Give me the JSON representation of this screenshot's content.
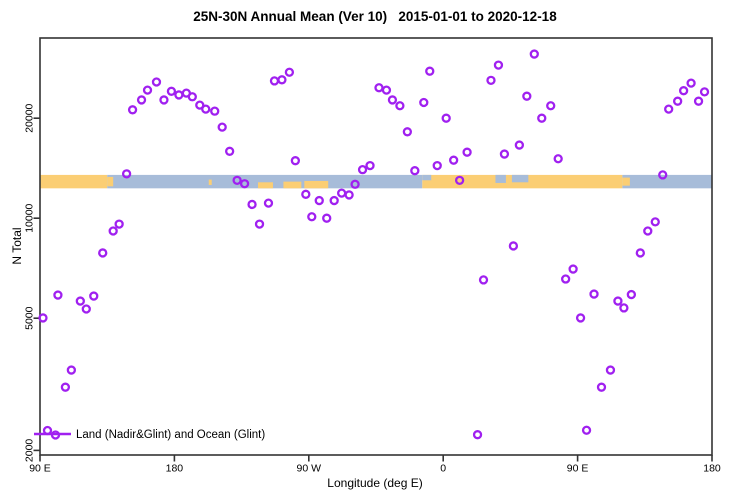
{
  "title": "25N-30N Annual Mean (Ver 10)   2015-01-01 to 2020-12-18",
  "chart_data": {
    "type": "scatter",
    "title": "25N-30N Annual Mean (Ver 10)   2015-01-01 to 2020-12-18",
    "xlabel": "Longitude (deg E)",
    "ylabel": "N Total",
    "y_scale": "log",
    "ylim": [
      1900,
      35000
    ],
    "x_axis_note": "longitude wraps eastward starting at 90E; deg = degrees east of 90E",
    "x_deg_span": [
      0,
      450
    ],
    "x_ticks": [
      {
        "deg": 0,
        "label": "90 E"
      },
      {
        "deg": 90,
        "label": "180"
      },
      {
        "deg": 180,
        "label": "90 W"
      },
      {
        "deg": 270,
        "label": "0"
      },
      {
        "deg": 360,
        "label": "90 E"
      },
      {
        "deg": 450,
        "label": "180"
      }
    ],
    "y_ticks": [
      2000,
      5000,
      10000,
      20000
    ],
    "grid": "off",
    "legend": {
      "position": "bottom-left",
      "label": "Land (Nadir&Glint) and Ocean (Glint)"
    },
    "point_color": "#A020F0",
    "axis_color": "#333333",
    "map_band": {
      "description": "world-map strip (25N-30N) drawn across plot",
      "value_top": 13500,
      "value_bottom": 12300,
      "land_color": "#FBCE74",
      "ocean_color": "#A7BCD9",
      "segments": [
        {
          "type": "land",
          "deg": [
            0,
            45
          ]
        },
        {
          "type": "ocean",
          "deg": [
            45,
            256
          ]
        },
        {
          "type": "land",
          "deg": [
            256,
            390
          ]
        },
        {
          "type": "ocean",
          "deg": [
            390,
            450
          ]
        }
      ],
      "details": [
        {
          "type": "land",
          "deg": [
            45,
            49
          ],
          "frac": [
            0.15,
            0.85
          ]
        },
        {
          "type": "land",
          "deg": [
            113,
            115
          ],
          "frac": [
            0.35,
            0.75
          ]
        },
        {
          "type": "land",
          "deg": [
            146,
            156
          ],
          "frac": [
            0.55,
            1
          ]
        },
        {
          "type": "land",
          "deg": [
            163,
            175
          ],
          "frac": [
            0.5,
            1
          ]
        },
        {
          "type": "land",
          "deg": [
            177,
            193
          ],
          "frac": [
            0.45,
            1
          ]
        },
        {
          "type": "ocean",
          "deg": [
            256,
            262
          ],
          "frac": [
            0,
            0.4
          ]
        },
        {
          "type": "ocean",
          "deg": [
            305,
            312
          ],
          "frac": [
            0,
            0.6
          ]
        },
        {
          "type": "ocean",
          "deg": [
            316,
            327
          ],
          "frac": [
            0,
            0.55
          ]
        },
        {
          "type": "land",
          "deg": [
            390,
            395
          ],
          "frac": [
            0.2,
            0.8
          ]
        }
      ]
    },
    "points": [
      [
        78,
        25700
      ],
      [
        72,
        24300
      ],
      [
        68,
        22700
      ],
      [
        62,
        21200
      ],
      [
        83,
        22700
      ],
      [
        88,
        24100
      ],
      [
        93,
        23500
      ],
      [
        98,
        23800
      ],
      [
        102,
        23200
      ],
      [
        107,
        21900
      ],
      [
        111,
        21300
      ],
      [
        117,
        21000
      ],
      [
        122,
        18800
      ],
      [
        127,
        15900
      ],
      [
        157,
        25900
      ],
      [
        162,
        26100
      ],
      [
        167,
        27500
      ],
      [
        58,
        13600
      ],
      [
        171,
        14900
      ],
      [
        132,
        13000
      ],
      [
        137,
        12700
      ],
      [
        216,
        14000
      ],
      [
        221,
        14400
      ],
      [
        178,
        11800
      ],
      [
        187,
        11300
      ],
      [
        197,
        11300
      ],
      [
        202,
        11900
      ],
      [
        207,
        11750
      ],
      [
        211,
        12650
      ],
      [
        142,
        11000
      ],
      [
        153,
        11100
      ],
      [
        147,
        9600
      ],
      [
        182,
        10100
      ],
      [
        192,
        10000
      ],
      [
        53,
        9600
      ],
      [
        49,
        9150
      ],
      [
        331,
        31200
      ],
      [
        307,
        28900
      ],
      [
        261,
        27700
      ],
      [
        302,
        26000
      ],
      [
        227,
        24700
      ],
      [
        232,
        24300
      ],
      [
        236,
        22700
      ],
      [
        241,
        21800
      ],
      [
        257,
        22300
      ],
      [
        326,
        23300
      ],
      [
        342,
        21800
      ],
      [
        336,
        20000
      ],
      [
        272,
        20000
      ],
      [
        246,
        18200
      ],
      [
        321,
        16600
      ],
      [
        311,
        15600
      ],
      [
        286,
        15800
      ],
      [
        277,
        14950
      ],
      [
        266,
        14400
      ],
      [
        251,
        13900
      ],
      [
        281,
        13000
      ],
      [
        347,
        15100
      ],
      [
        417,
        13500
      ],
      [
        436,
        25500
      ],
      [
        431,
        24200
      ],
      [
        445,
        24000
      ],
      [
        441,
        22500
      ],
      [
        427,
        22500
      ],
      [
        421,
        21300
      ],
      [
        407,
        9150
      ],
      [
        412,
        9750
      ],
      [
        42,
        7860
      ],
      [
        12,
        5870
      ],
      [
        36,
        5830
      ],
      [
        27,
        5630
      ],
      [
        31,
        5330
      ],
      [
        2,
        5010
      ],
      [
        21,
        3490
      ],
      [
        17,
        3100
      ],
      [
        317,
        8250
      ],
      [
        402,
        7860
      ],
      [
        357,
        7030
      ],
      [
        352,
        6560
      ],
      [
        297,
        6520
      ],
      [
        371,
        5910
      ],
      [
        387,
        5630
      ],
      [
        396,
        5890
      ],
      [
        391,
        5370
      ],
      [
        362,
        5010
      ],
      [
        382,
        3490
      ],
      [
        376,
        3100
      ],
      [
        293,
        2230
      ],
      [
        366,
        2300
      ]
    ]
  }
}
